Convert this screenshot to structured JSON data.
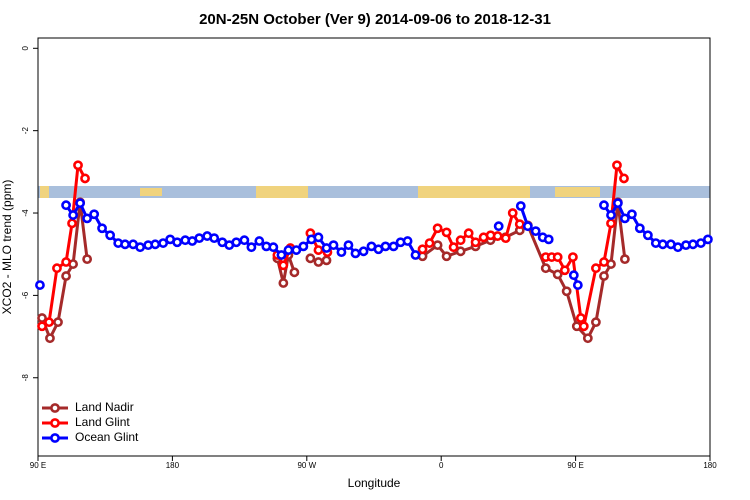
{
  "chart_data": {
    "type": "line",
    "title": "20N-25N October (Ver 9)   2014-09-06 to 2018-12-31",
    "xlabel": "Longitude",
    "ylabel": "XCO2 - MLO trend (ppm)",
    "xlim": [
      90,
      540
    ],
    "ylim": [
      -9.9,
      0.25
    ],
    "xticks": [
      {
        "value": 90,
        "label": "90 E"
      },
      180,
      {
        "value": 270,
        "label": "90 W"
      },
      {
        "value": 360,
        "label": "0"
      },
      {
        "value": 450,
        "label": "90 E"
      },
      {
        "value": 540,
        "label": "180"
      }
    ],
    "yticks": [
      0,
      -2,
      -4,
      -6,
      -8
    ],
    "legend": "bottom-left",
    "series": [
      {
        "name": "Land Nadir",
        "color": "#a52a2a",
        "x": [
          92.7,
          98,
          103.4,
          108.8,
          113.5,
          118.2,
          122.9,
          null,
          250.3,
          254.3,
          257.7,
          261.7,
          null,
          272.4,
          277.8,
          283.2,
          null,
          347.5,
          357.6,
          363.6,
          373,
          383,
          393,
          403,
          412.6,
          418,
          430,
          438,
          444,
          450.8,
          458.2,
          463.6,
          469,
          473.7,
          478.3,
          483
        ],
        "values": [
          -6.55,
          -7.04,
          -6.65,
          -5.53,
          -5.24,
          -3.74,
          -5.12,
          null,
          -5.1,
          -5.7,
          -5.02,
          -5.44,
          null,
          -5.1,
          -5.19,
          -5.15,
          null,
          -5.05,
          -4.78,
          -5.05,
          -4.93,
          -4.81,
          -4.66,
          -4.59,
          -4.42,
          -4.3,
          -5.34,
          -5.49,
          -5.9,
          -6.75,
          -7.04,
          -6.65,
          -5.53,
          -5.24,
          -3.74,
          -5.12
        ]
      },
      {
        "name": "Land Glint",
        "color": "#ff0000",
        "x": [
          92.7,
          97.4,
          102.7,
          108.8,
          112.8,
          116.8,
          121.5,
          null,
          250.3,
          254.3,
          259,
          null,
          272.4,
          277.8,
          283.8,
          null,
          347.5,
          352.2,
          357.6,
          363.6,
          368.3,
          373,
          378.4,
          383,
          388.4,
          393.1,
          397.8,
          403.2,
          407.9,
          412.6,
          null,
          430,
          434,
          438,
          442.8,
          448.2,
          453.5,
          455.5,
          463.6,
          469,
          473.7,
          477.7,
          482.4
        ],
        "values": [
          -6.75,
          -6.65,
          -5.34,
          -5.19,
          -4.25,
          -2.84,
          -3.16,
          null,
          -5.02,
          -5.27,
          -4.85,
          null,
          -4.49,
          -4.9,
          -4.95,
          null,
          -4.88,
          -4.73,
          -4.37,
          -4.47,
          -4.83,
          -4.66,
          -4.49,
          -4.71,
          -4.59,
          -4.54,
          -4.56,
          -4.61,
          -4.0,
          -4.27,
          null,
          -5.07,
          -5.07,
          -5.07,
          -5.39,
          -5.07,
          -6.55,
          -6.75,
          -5.34,
          -5.19,
          -4.25,
          -2.84,
          -3.16
        ]
      },
      {
        "name": "Ocean Glint",
        "color": "#0000ff",
        "x": [
          91.3,
          null,
          108.8,
          113.5,
          118.2,
          122.9,
          127.6,
          132.9,
          138.3,
          143.7,
          148.3,
          153.7,
          158.4,
          163.8,
          168.5,
          173.8,
          178.5,
          183.2,
          188.6,
          193.3,
          198,
          203.3,
          208,
          213.4,
          218.1,
          222.8,
          228.2,
          232.9,
          238.2,
          242.9,
          247.6,
          253,
          257.7,
          263,
          267.7,
          273.1,
          277.8,
          283.2,
          287.9,
          293.2,
          297.9,
          302.6,
          308,
          313.3,
          318,
          322.7,
          328.1,
          332.8,
          337.5,
          342.8,
          null,
          398.5,
          null,
          413.3,
          418,
          423.3,
          428,
          432,
          null,
          448.8,
          451.5,
          null,
          469,
          473.7,
          478.3,
          483,
          487.7,
          493,
          498.4,
          503.7,
          508.4,
          513.8,
          518.5,
          523.9,
          528.6,
          533.9,
          538.6
        ],
        "values": [
          -5.75,
          null,
          -3.81,
          -4.05,
          -3.76,
          -4.13,
          -4.03,
          -4.37,
          -4.54,
          -4.73,
          -4.76,
          -4.76,
          -4.83,
          -4.78,
          -4.76,
          -4.73,
          -4.64,
          -4.71,
          -4.66,
          -4.68,
          -4.61,
          -4.56,
          -4.61,
          -4.71,
          -4.78,
          -4.71,
          -4.66,
          -4.83,
          -4.68,
          -4.81,
          -4.83,
          -5.02,
          -4.9,
          -4.9,
          -4.81,
          -4.64,
          -4.59,
          -4.85,
          -4.78,
          -4.95,
          -4.78,
          -4.98,
          -4.93,
          -4.81,
          -4.88,
          -4.81,
          -4.81,
          -4.71,
          -4.68,
          -5.02,
          null,
          -4.32,
          null,
          -3.83,
          -4.32,
          -4.44,
          -4.59,
          -4.64,
          null,
          -5.51,
          -5.75,
          null,
          -3.81,
          -4.05,
          -3.76,
          -4.13,
          -4.03,
          -4.37,
          -4.54,
          -4.73,
          -4.76,
          -4.76,
          -4.83,
          -4.78,
          -4.76,
          -4.73,
          -4.64
        ]
      }
    ]
  }
}
